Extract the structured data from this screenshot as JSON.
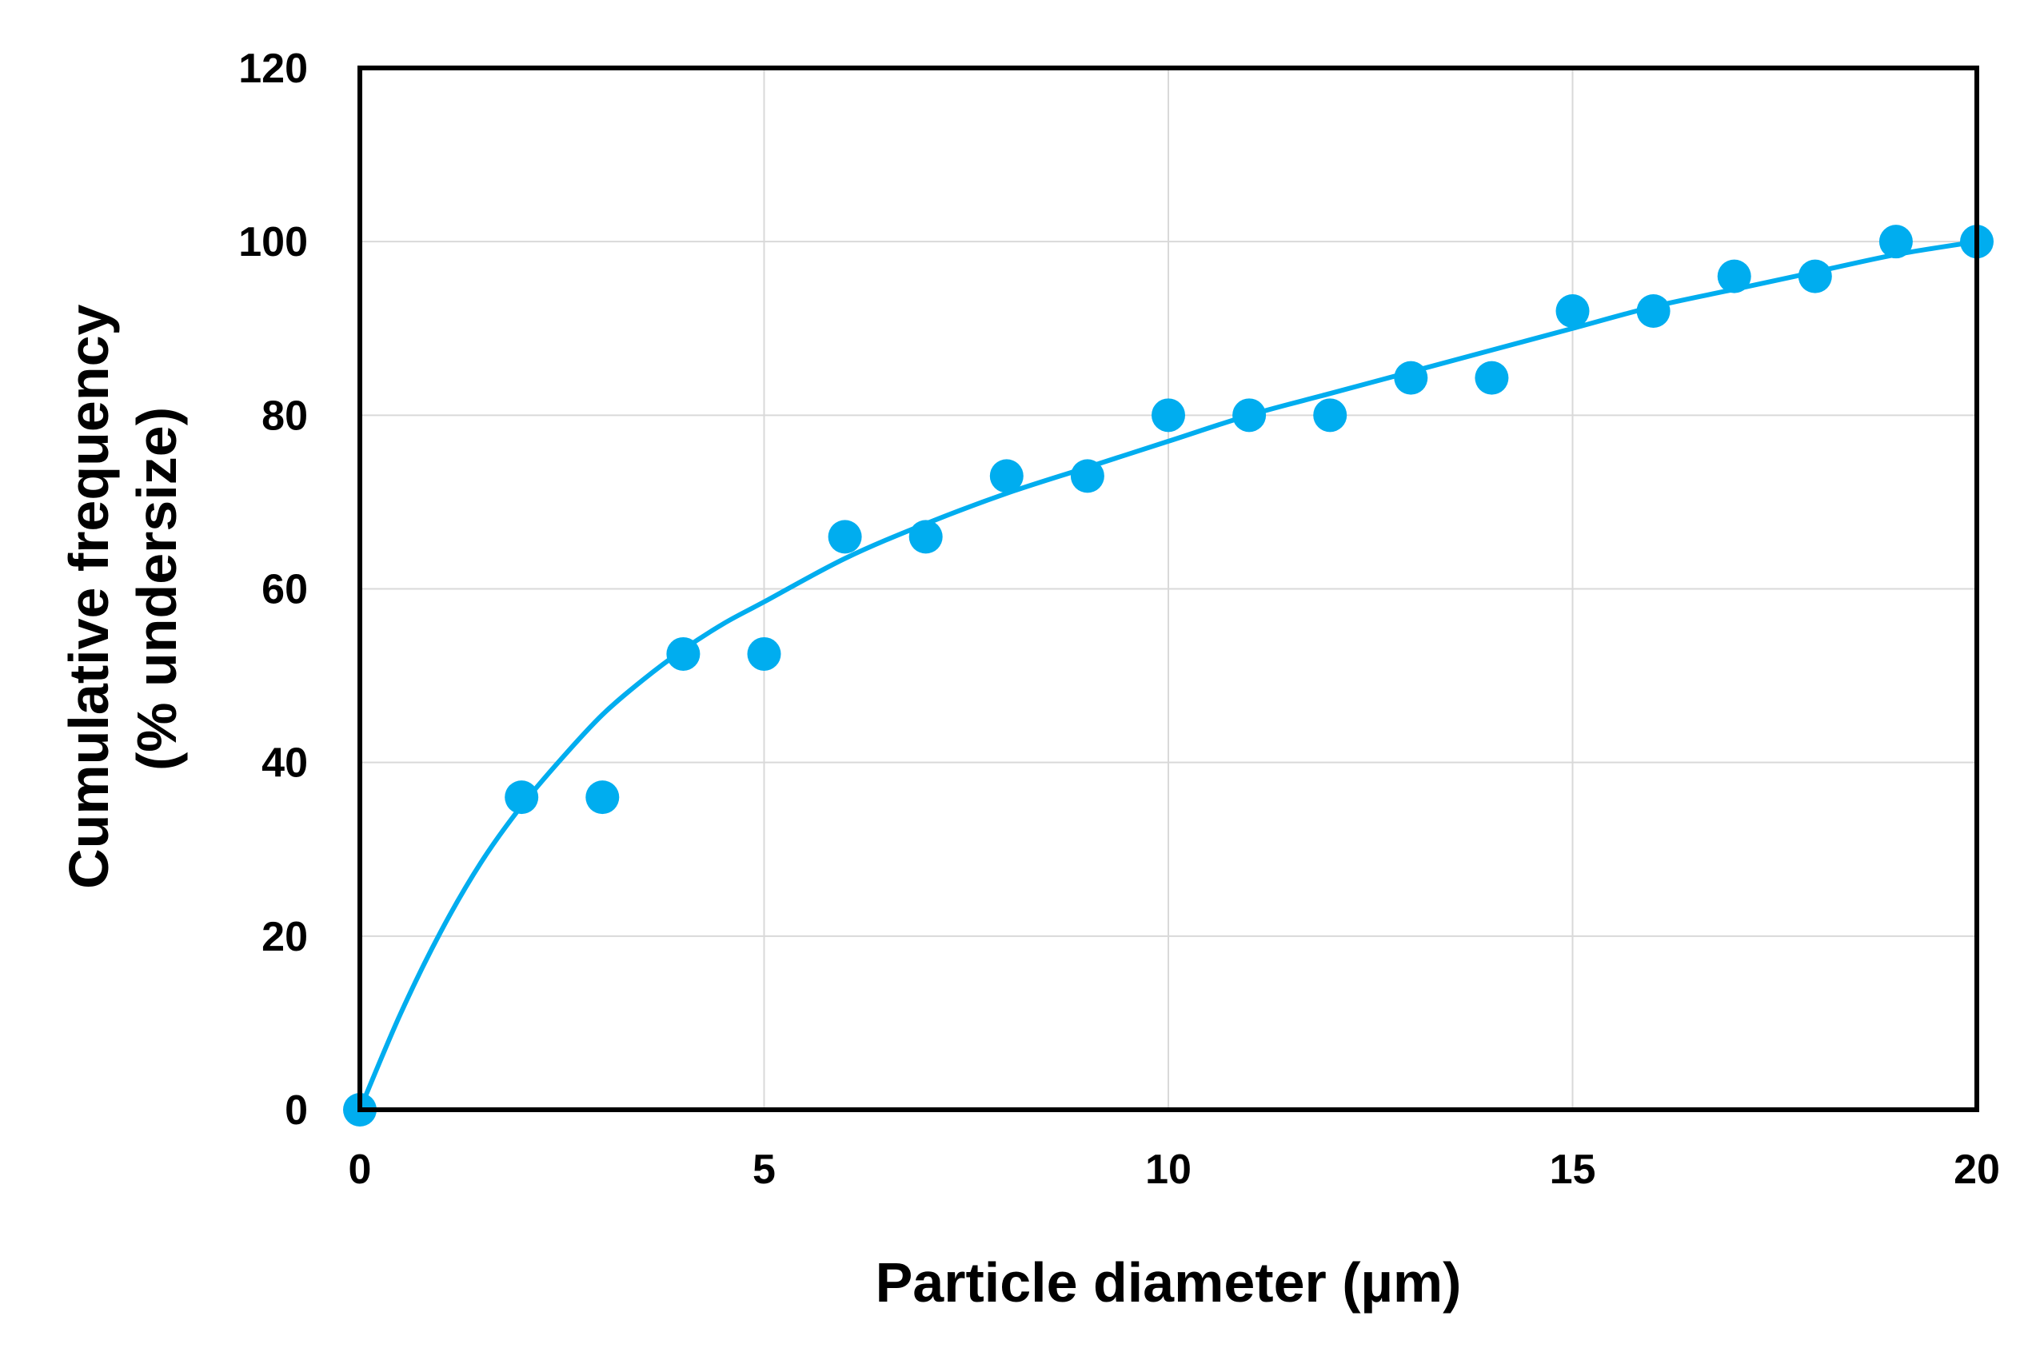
{
  "chart_data": {
    "type": "scatter",
    "title": "",
    "xlabel": "Particle diameter (µm)",
    "ylabel_lines": [
      "Cumulative frequency",
      "(% undersize)"
    ],
    "xlim": [
      0,
      20
    ],
    "ylim": [
      0,
      120
    ],
    "x_ticks": [
      "0",
      "5",
      "10",
      "15",
      "20"
    ],
    "y_ticks": [
      "0",
      "20",
      "40",
      "60",
      "80",
      "100",
      "120"
    ],
    "grid": true,
    "legend": "none",
    "series": [
      {
        "kind": "points",
        "x": [
          0,
          2,
          3,
          4,
          5,
          6,
          7,
          8,
          9,
          10,
          11,
          12,
          13,
          14,
          15,
          16,
          17,
          18,
          19,
          20
        ],
        "y": [
          0,
          36,
          36,
          52.5,
          52.5,
          66,
          66,
          73,
          73,
          80,
          80,
          80,
          84.3,
          84.3,
          92,
          92,
          96,
          96,
          100,
          100
        ]
      },
      {
        "kind": "fitted-curve",
        "x": [
          0,
          0.5,
          1,
          1.5,
          2,
          2.5,
          3,
          3.5,
          4,
          4.5,
          5,
          6,
          7,
          8,
          9,
          10,
          11,
          12,
          13,
          14,
          15,
          16,
          17,
          18,
          19,
          20
        ],
        "y": [
          0,
          11,
          20.5,
          28.5,
          35,
          40.5,
          45.5,
          49.5,
          53,
          56,
          58.5,
          63.5,
          67.5,
          71,
          74,
          77,
          80,
          82.5,
          85,
          87.5,
          90,
          92.5,
          94.5,
          96.5,
          98.5,
          100
        ]
      }
    ],
    "colors": {
      "marker": "#00ADEF",
      "line": "#00ADEF",
      "grid": "#D9D9D9",
      "frame": "#000000"
    }
  }
}
